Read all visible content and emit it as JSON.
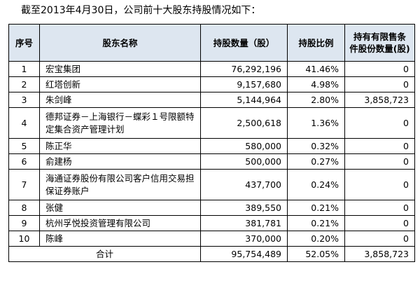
{
  "intro": "截至2013年4月30日，公司前十大股东持股情况如下：",
  "table": {
    "headers": {
      "no": "序号",
      "name": "股东名称",
      "shares": "持股数量（股）",
      "ratio": "持股比例",
      "restricted": "持有有限售条件股份数量(股)"
    },
    "rows": [
      {
        "no": "1",
        "name": "宏宝集团",
        "shares": "76,292,196",
        "ratio": "41.46%",
        "restricted": "0"
      },
      {
        "no": "2",
        "name": "红塔创新",
        "shares": "9,157,680",
        "ratio": "4.98%",
        "restricted": "0"
      },
      {
        "no": "3",
        "name": "朱剑峰",
        "shares": "5,144,964",
        "ratio": "2.80%",
        "restricted": "3,858,723"
      },
      {
        "no": "4",
        "name": "德邦证券－上海银行－蝶彩１号限额特定集合资产管理计划",
        "shares": "2,500,618",
        "ratio": "1.36%",
        "restricted": "0"
      },
      {
        "no": "5",
        "name": "陈正华",
        "shares": "580,000",
        "ratio": "0.32%",
        "restricted": "0"
      },
      {
        "no": "6",
        "name": "俞建杨",
        "shares": "500,000",
        "ratio": "0.27%",
        "restricted": "0"
      },
      {
        "no": "7",
        "name": "海通证券股份有限公司客户信用交易担保证券账户",
        "shares": "437,700",
        "ratio": "0.24%",
        "restricted": "0"
      },
      {
        "no": "8",
        "name": "张健",
        "shares": "389,550",
        "ratio": "0.21%",
        "restricted": "0"
      },
      {
        "no": "9",
        "name": "杭州孚悦投资管理有限公司",
        "shares": "381,781",
        "ratio": "0.21%",
        "restricted": "0"
      },
      {
        "no": "10",
        "name": "陈峰",
        "shares": "370,000",
        "ratio": "0.20%",
        "restricted": "0"
      }
    ],
    "total": {
      "label": "合计",
      "shares": "95,754,489",
      "ratio": "52.05%",
      "restricted": "3,858,723"
    }
  }
}
